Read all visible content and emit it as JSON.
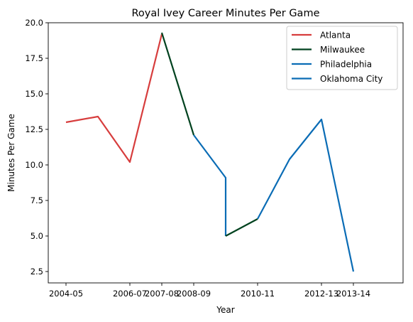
{
  "chart_data": {
    "type": "line",
    "title": "Royal Ivey Career Minutes Per Game",
    "xlabel": "Year",
    "ylabel": "Minutes Per Game",
    "x_tick_labels": [
      "2004-05",
      "2006-07",
      "2007-08",
      "2008-09",
      "2010-11",
      "2012-13",
      "2013-14"
    ],
    "y_tick_labels": [
      "2.5",
      "5.0",
      "7.5",
      "10.0",
      "12.5",
      "15.0",
      "17.5",
      "20.0"
    ],
    "ylim": [
      1.7,
      20.0
    ],
    "legend_position": "top-right",
    "grid": false,
    "series": [
      {
        "name": "Atlanta",
        "color": "#d73d3d",
        "points": [
          {
            "season": "2004-05",
            "value": 13.0
          },
          {
            "season": "2005-06",
            "value": 13.4
          },
          {
            "season": "2006-07",
            "value": 10.2
          },
          {
            "season": "2007-08",
            "value": 19.2
          }
        ]
      },
      {
        "name": "Milwaukee",
        "color": "#00421f",
        "points": [
          {
            "season": "2007-08",
            "value": 19.3
          },
          {
            "season": "2008-09",
            "value": 12.1
          }
        ]
      },
      {
        "name": "Philadelphia",
        "color": "#0a6cb5",
        "points": [
          {
            "season": "2008-09",
            "value": 12.1
          },
          {
            "season": "2009-10",
            "value": 9.1
          },
          {
            "season": "2009-10",
            "value": 5.0
          }
        ]
      },
      {
        "name": "Milwaukee",
        "color": "#00421f",
        "points": [
          {
            "season": "2009-10",
            "value": 5.0
          },
          {
            "season": "2010-11",
            "value": 6.2
          }
        ]
      },
      {
        "name": "Oklahoma City",
        "color": "#0a6cb5",
        "points": [
          {
            "season": "2010-11",
            "value": 6.2
          },
          {
            "season": "2011-12",
            "value": 10.4
          },
          {
            "season": "2012-13",
            "value": 13.2
          },
          {
            "season": "2013-14",
            "value": 2.5
          }
        ]
      }
    ],
    "legend": [
      {
        "label": "Atlanta",
        "color": "#d73d3d"
      },
      {
        "label": "Milwaukee",
        "color": "#00421f"
      },
      {
        "label": "Philadelphia",
        "color": "#0a6cb5"
      },
      {
        "label": "Oklahoma City",
        "color": "#0a6cb5"
      }
    ]
  }
}
